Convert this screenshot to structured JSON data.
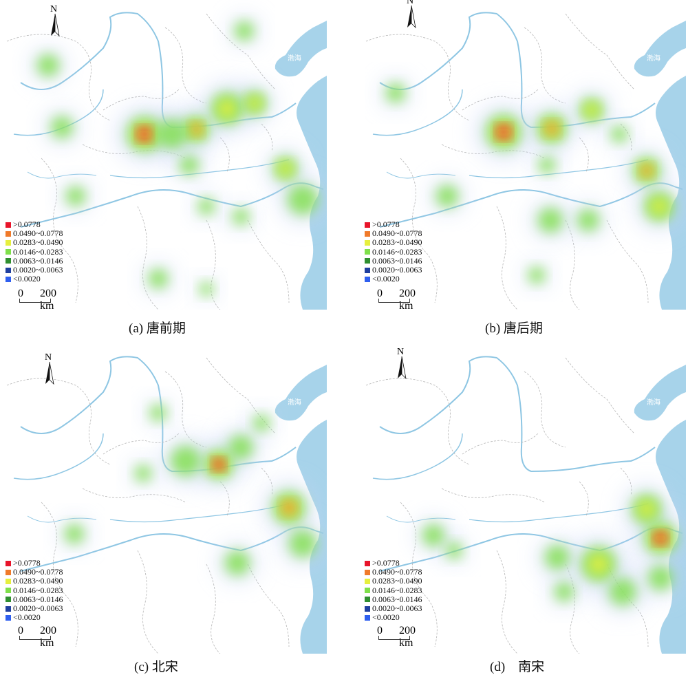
{
  "legend": {
    "items": [
      {
        "label": ">0.0778",
        "color": "#e8142a"
      },
      {
        "label": "0.0490~0.0778",
        "color": "#f07a2a"
      },
      {
        "label": "0.0283~0.0490",
        "color": "#e6ef3e"
      },
      {
        "label": "0.0146~0.0283",
        "color": "#7fe04a"
      },
      {
        "label": "0.0063~0.0146",
        "color": "#2f8f2f"
      },
      {
        "label": "0.0020~0.0063",
        "color": "#1f3f9f"
      },
      {
        "label": "<0.0020",
        "color": "#2f5fef"
      }
    ]
  },
  "scale": {
    "zero": "0",
    "end": "200 km"
  },
  "north": {
    "label": "N"
  },
  "sea_label": "渤海",
  "panels": [
    {
      "caption": "(a) 唐前期"
    },
    {
      "caption": "(b) 唐后期"
    },
    {
      "caption": "(c) 北宋"
    },
    {
      "caption": "(d)　南宋"
    }
  ],
  "colors": {
    "water": "#a7d3ea",
    "river": "#8ec6e3",
    "border": "#b6b6b6",
    "haze": "#c9d6f5"
  }
}
